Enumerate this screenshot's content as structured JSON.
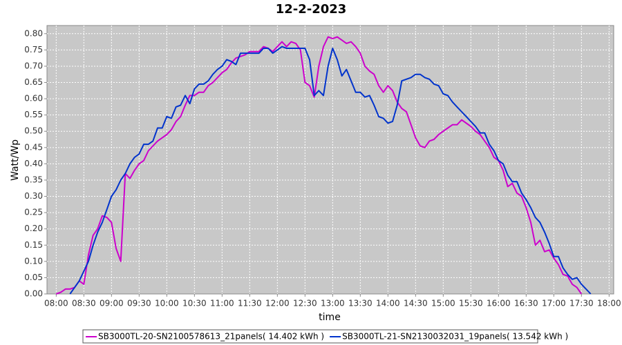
{
  "chart_data": {
    "type": "line",
    "title": "12-2-2023",
    "xlabel": "time",
    "ylabel": "Watt/Wp",
    "x": [
      "08:00",
      "08:05",
      "08:10",
      "08:15",
      "08:20",
      "08:25",
      "08:30",
      "08:35",
      "08:40",
      "08:45",
      "08:50",
      "08:55",
      "09:00",
      "09:05",
      "09:10",
      "09:15",
      "09:20",
      "09:25",
      "09:30",
      "09:35",
      "09:40",
      "09:45",
      "09:50",
      "09:55",
      "10:00",
      "10:05",
      "10:10",
      "10:15",
      "10:20",
      "10:25",
      "10:30",
      "10:35",
      "10:40",
      "10:45",
      "10:50",
      "10:55",
      "11:00",
      "11:05",
      "11:10",
      "11:15",
      "11:20",
      "11:25",
      "11:30",
      "11:35",
      "11:40",
      "11:45",
      "11:50",
      "11:55",
      "12:00",
      "12:05",
      "12:10",
      "12:15",
      "12:20",
      "12:25",
      "12:30",
      "12:35",
      "12:40",
      "12:45",
      "12:50",
      "12:55",
      "13:00",
      "13:05",
      "13:10",
      "13:15",
      "13:20",
      "13:25",
      "13:30",
      "13:35",
      "13:40",
      "13:45",
      "13:50",
      "13:55",
      "14:00",
      "14:05",
      "14:10",
      "14:15",
      "14:20",
      "14:25",
      "14:30",
      "14:35",
      "14:40",
      "14:45",
      "14:50",
      "14:55",
      "15:00",
      "15:05",
      "15:10",
      "15:15",
      "15:20",
      "15:25",
      "15:30",
      "15:35",
      "15:40",
      "15:45",
      "15:50",
      "15:55",
      "16:00",
      "16:05",
      "16:10",
      "16:15",
      "16:20",
      "16:25",
      "16:30",
      "16:35",
      "16:40",
      "16:45",
      "16:50",
      "16:55",
      "17:00",
      "17:05",
      "17:10",
      "17:15",
      "17:20",
      "17:25",
      "17:30",
      "17:35",
      "17:40"
    ],
    "series": [
      {
        "name": "SB3000TL-20-SN2100578613_21panels( 14.402 kWh )",
        "color": "#cc00cc",
        "values": [
          0,
          0.005,
          0.015,
          0.015,
          0.02,
          0.04,
          0.03,
          0.12,
          0.18,
          0.2,
          0.24,
          0.235,
          0.22,
          0.14,
          0.1,
          0.37,
          0.355,
          0.38,
          0.4,
          0.41,
          0.44,
          0.455,
          0.47,
          0.48,
          0.49,
          0.505,
          0.53,
          0.545,
          0.58,
          0.61,
          0.61,
          0.62,
          0.62,
          0.64,
          0.65,
          0.665,
          0.68,
          0.69,
          0.71,
          0.725,
          0.73,
          0.735,
          0.745,
          0.745,
          0.745,
          0.76,
          0.755,
          0.745,
          0.76,
          0.775,
          0.76,
          0.775,
          0.77,
          0.75,
          0.65,
          0.64,
          0.605,
          0.7,
          0.76,
          0.79,
          0.785,
          0.79,
          0.78,
          0.77,
          0.775,
          0.76,
          0.74,
          0.7,
          0.685,
          0.675,
          0.64,
          0.62,
          0.64,
          0.625,
          0.59,
          0.57,
          0.56,
          0.52,
          0.48,
          0.455,
          0.45,
          0.47,
          0.475,
          0.49,
          0.5,
          0.51,
          0.52,
          0.52,
          0.535,
          0.525,
          0.515,
          0.5,
          0.49,
          0.47,
          0.45,
          0.42,
          0.41,
          0.38,
          0.33,
          0.34,
          0.31,
          0.3,
          0.265,
          0.22,
          0.15,
          0.165,
          0.13,
          0.135,
          0.11,
          0.09,
          0.06,
          0.055,
          0.03,
          0.02,
          0,
          null,
          null
        ]
      },
      {
        "name": "SB3000TL-21-SN2130032031_19panels( 13.542 kWh )",
        "color": "#0033cc",
        "values": [
          null,
          null,
          null,
          0,
          0.02,
          0.04,
          0.07,
          0.1,
          0.15,
          0.19,
          0.22,
          0.26,
          0.3,
          0.32,
          0.35,
          0.37,
          0.4,
          0.42,
          0.43,
          0.46,
          0.46,
          0.47,
          0.51,
          0.51,
          0.545,
          0.54,
          0.575,
          0.58,
          0.61,
          0.585,
          0.63,
          0.645,
          0.645,
          0.655,
          0.675,
          0.69,
          0.7,
          0.72,
          0.715,
          0.705,
          0.74,
          0.74,
          0.74,
          0.74,
          0.74,
          0.755,
          0.755,
          0.74,
          0.75,
          0.76,
          0.755,
          0.755,
          0.755,
          0.755,
          0.755,
          0.72,
          0.61,
          0.625,
          0.61,
          0.7,
          0.755,
          0.72,
          0.67,
          0.69,
          0.655,
          0.62,
          0.62,
          0.605,
          0.61,
          0.58,
          0.545,
          0.54,
          0.525,
          0.53,
          0.58,
          0.655,
          0.66,
          0.665,
          0.675,
          0.675,
          0.665,
          0.66,
          0.645,
          0.64,
          0.615,
          0.61,
          0.59,
          0.575,
          0.56,
          0.545,
          0.53,
          0.515,
          0.495,
          0.495,
          0.46,
          0.44,
          0.41,
          0.4,
          0.365,
          0.345,
          0.345,
          0.31,
          0.29,
          0.265,
          0.235,
          0.22,
          0.19,
          0.155,
          0.115,
          0.115,
          0.08,
          0.06,
          0.045,
          0.05,
          0.03,
          0.015,
          0
        ]
      }
    ],
    "xlim": [
      "07:50",
      "18:05"
    ],
    "xticks": [
      "08:00",
      "08:30",
      "09:00",
      "09:30",
      "10:00",
      "10:30",
      "11:00",
      "11:30",
      "12:00",
      "12:30",
      "13:00",
      "13:30",
      "14:00",
      "14:30",
      "15:00",
      "15:30",
      "16:00",
      "16:30",
      "17:00",
      "17:30",
      "18:00"
    ],
    "ylim": [
      0,
      0.825
    ],
    "yticks": [
      {
        "value": 0,
        "label": "0.00"
      },
      {
        "value": 0.05,
        "label": "0.05"
      },
      {
        "value": 0.1,
        "label": "0.10"
      },
      {
        "value": 0.15,
        "label": "0.15"
      },
      {
        "value": 0.2,
        "label": "0.20"
      },
      {
        "value": 0.25,
        "label": "0.25"
      },
      {
        "value": 0.3,
        "label": "0.30"
      },
      {
        "value": 0.35,
        "label": "0.35"
      },
      {
        "value": 0.4,
        "label": "0.40"
      },
      {
        "value": 0.45,
        "label": "0.45"
      },
      {
        "value": 0.5,
        "label": "0.50"
      },
      {
        "value": 0.55,
        "label": "0.55"
      },
      {
        "value": 0.6,
        "label": "0.60"
      },
      {
        "value": 0.65,
        "label": "0.65"
      },
      {
        "value": 0.7,
        "label": "0.70"
      },
      {
        "value": 0.75,
        "label": "0.75"
      },
      {
        "value": 0.8,
        "label": "0.80"
      }
    ],
    "grid": true
  }
}
